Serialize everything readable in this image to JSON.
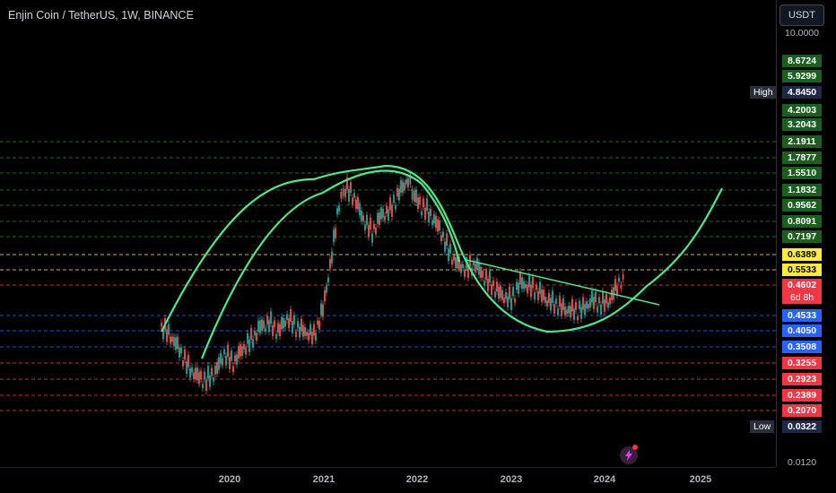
{
  "header": {
    "symbol_title": "Enjin Coin / TetherUS, 1W, BINANCE"
  },
  "toolbar": {
    "currency_label": "USDT"
  },
  "price_axis": {
    "top_partial": "10.0000",
    "bottom": "0.0120",
    "high_label": "High",
    "low_label": "Low",
    "countdown": "6d 8h",
    "tags": [
      {
        "text": "8.6724",
        "color": "#1b5e20"
      },
      {
        "text": "5.9299",
        "color": "#1b5e20"
      },
      {
        "text": "4.8450",
        "color": "#1e2a45"
      },
      {
        "text": "4.2003",
        "color": "#1b5e20"
      },
      {
        "text": "3.2043",
        "color": "#1b5e20"
      },
      {
        "text": "2.1911",
        "color": "#1b5e20"
      },
      {
        "text": "1.7877",
        "color": "#1b5e20"
      },
      {
        "text": "1.5510",
        "color": "#1b5e20"
      },
      {
        "text": "1.1832",
        "color": "#1b5e20"
      },
      {
        "text": "0.9562",
        "color": "#1b5e20"
      },
      {
        "text": "0.8091",
        "color": "#1b5e20"
      },
      {
        "text": "0.7197",
        "color": "#1b5e20"
      },
      {
        "text": "0.6389",
        "color": "#ffeb3b"
      },
      {
        "text": "0.5533",
        "color": "#ffeb3b"
      },
      {
        "text": "0.4602",
        "color": "#f23645"
      },
      {
        "text": "0.4533",
        "color": "#2962ff"
      },
      {
        "text": "0.4050",
        "color": "#2962ff"
      },
      {
        "text": "0.3508",
        "color": "#2962ff"
      },
      {
        "text": "0.3255",
        "color": "#f23645"
      },
      {
        "text": "0.2923",
        "color": "#f23645"
      },
      {
        "text": "0.2389",
        "color": "#f23645"
      },
      {
        "text": "0.2070",
        "color": "#f23645"
      },
      {
        "text": "0.0322",
        "color": "#1e2a45"
      }
    ]
  },
  "time_axis": {
    "labels": [
      "2020",
      "2021",
      "2022",
      "2023",
      "2024",
      "2025"
    ]
  },
  "colors": {
    "up": "#26a69a",
    "down": "#ef5350",
    "pattern": "#4caf7d"
  }
}
